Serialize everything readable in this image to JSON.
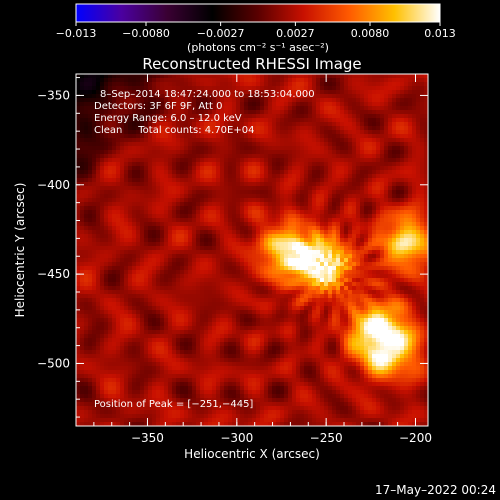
{
  "colorbar": {
    "ticks": [
      "−0.013",
      "−0.0080",
      "−0.0027",
      "0.0027",
      "0.0080",
      "0.013"
    ],
    "units": "(photons cm⁻² s⁻¹ asec⁻²)"
  },
  "header": {
    "title": "Reconstructed RHESSI Image"
  },
  "annotations": {
    "time_range": "8–Sep–2014 18:47:24.000 to 18:53:04.000",
    "detectors": "Detectors: 3F 6F 9F, Att 0",
    "energy": "Energy Range: 6.0 – 12.0 keV",
    "clean": "Clean     Total counts: 4.70E+04",
    "peak": "Position of Peak = [−251,−445]"
  },
  "footer": {
    "timestamp": "17–May–2022 00:24"
  },
  "chart_data": {
    "type": "heatmap",
    "title": "Reconstructed RHESSI Image",
    "xlabel": "Heliocentric X (arcsec)",
    "ylabel": "Heliocentric Y (arcsec)",
    "xlim": [
      -390,
      -193
    ],
    "ylim": [
      -535,
      -338
    ],
    "xticks": [
      -350,
      -300,
      -250,
      -200
    ],
    "xtick_labels": [
      "−350",
      "−300",
      "−250",
      "−200"
    ],
    "yticks": [
      -350,
      -400,
      -450,
      -500
    ],
    "ytick_labels": [
      "−350",
      "−400",
      "−450",
      "−500"
    ],
    "colorbar_range": [
      -0.013,
      0.013
    ],
    "colormap": [
      "#0000ff",
      "#4b00a0",
      "#3a0033",
      "#000000",
      "#5a0000",
      "#c81000",
      "#ff5a00",
      "#ffc000",
      "#ffffff"
    ],
    "peak_position": [
      -251,
      -445
    ],
    "sources": [
      {
        "x": -251,
        "y": -445,
        "relative_intensity": 1.0
      },
      {
        "x": -272,
        "y": -437,
        "relative_intensity": 0.85
      },
      {
        "x": -205,
        "y": -432,
        "relative_intensity": 0.85
      },
      {
        "x": -215,
        "y": -492,
        "relative_intensity": 0.95
      },
      {
        "x": -222,
        "y": -480,
        "relative_intensity": 0.8
      }
    ]
  }
}
